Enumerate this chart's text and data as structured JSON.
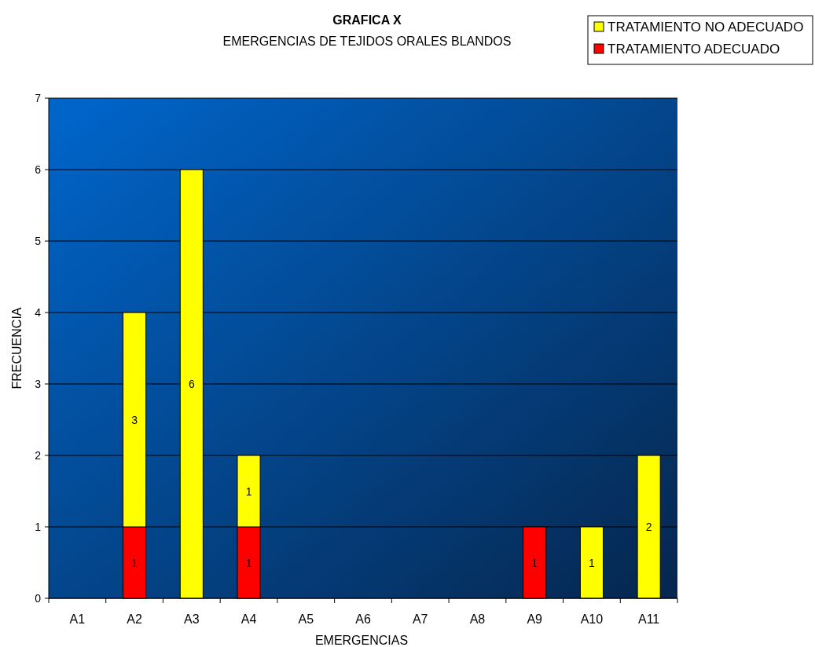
{
  "chart_data": {
    "type": "bar",
    "title": "GRAFICA X",
    "subtitle": "EMERGENCIAS DE TEJIDOS ORALES BLANDOS",
    "xlabel": "EMERGENCIAS",
    "ylabel": "FRECUENCIA",
    "categories": [
      "A1",
      "A2",
      "A3",
      "A4",
      "A5",
      "A6",
      "A7",
      "A8",
      "A9",
      "A10",
      "A11"
    ],
    "series": [
      {
        "name": "TRATAMIENTO ADECUADO",
        "color": "#ff0000",
        "values": [
          null,
          1,
          null,
          1,
          null,
          null,
          null,
          null,
          1,
          null,
          null
        ]
      },
      {
        "name": "TRATAMIENTO NO ADECUADO",
        "color": "#ffff00",
        "values": [
          null,
          3,
          6,
          1,
          null,
          null,
          null,
          null,
          null,
          1,
          2
        ]
      }
    ],
    "stacked": true,
    "ylim": [
      0,
      7
    ],
    "yticks": [
      0,
      1,
      2,
      3,
      4,
      5,
      6,
      7
    ],
    "grid": "y",
    "legend": "top right",
    "data_labels": true
  }
}
